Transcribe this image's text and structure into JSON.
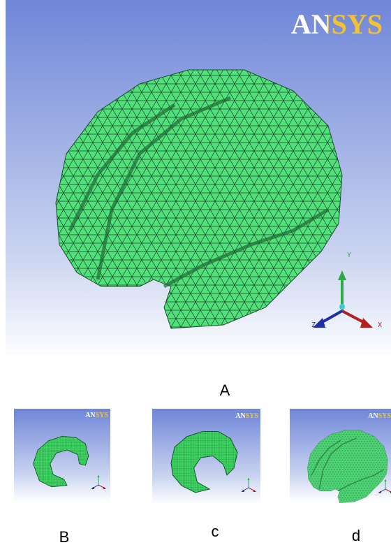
{
  "panels": [
    {
      "logo": "ANSYS",
      "axes": {
        "y": "Y",
        "z": "Z",
        "x": "X"
      },
      "label": "A"
    },
    {
      "logo": "ANSYS",
      "label": "B"
    },
    {
      "logo": "ANSYS",
      "label": "c"
    },
    {
      "logo": "ANSYS",
      "label": "d"
    }
  ]
}
